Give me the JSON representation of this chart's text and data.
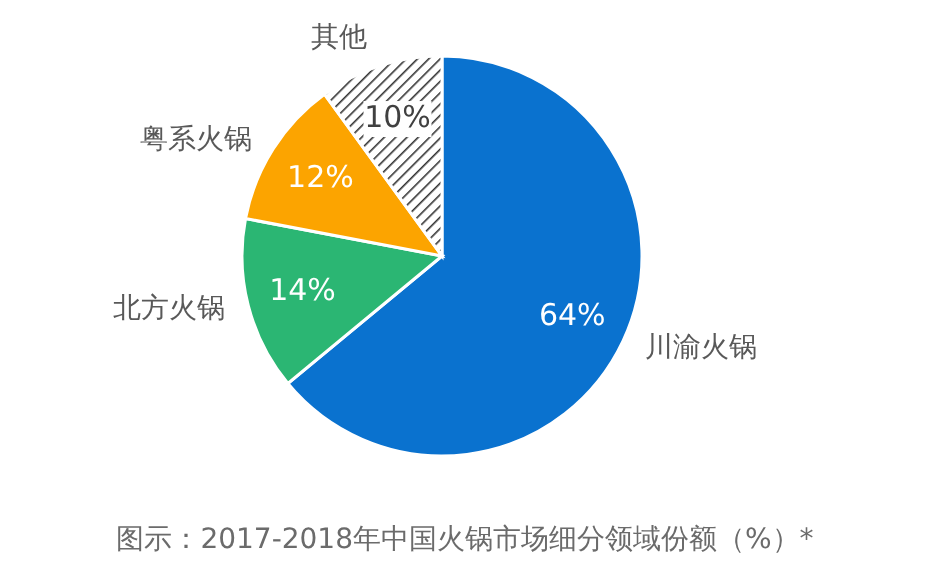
{
  "chart_data": {
    "type": "pie",
    "categories": [
      "川渝火锅",
      "北方火锅",
      "粤系火锅",
      "其他"
    ],
    "values": [
      64,
      14,
      12,
      10
    ],
    "colors": [
      "#0a72cf",
      "#2bb673",
      "#fca400",
      "#ffffff"
    ],
    "value_labels": [
      "64%",
      "14%",
      "12%",
      "10%"
    ],
    "annotations": [
      "图示：2017-2018年中国火锅市场细分领域份额（%）*"
    ]
  }
}
